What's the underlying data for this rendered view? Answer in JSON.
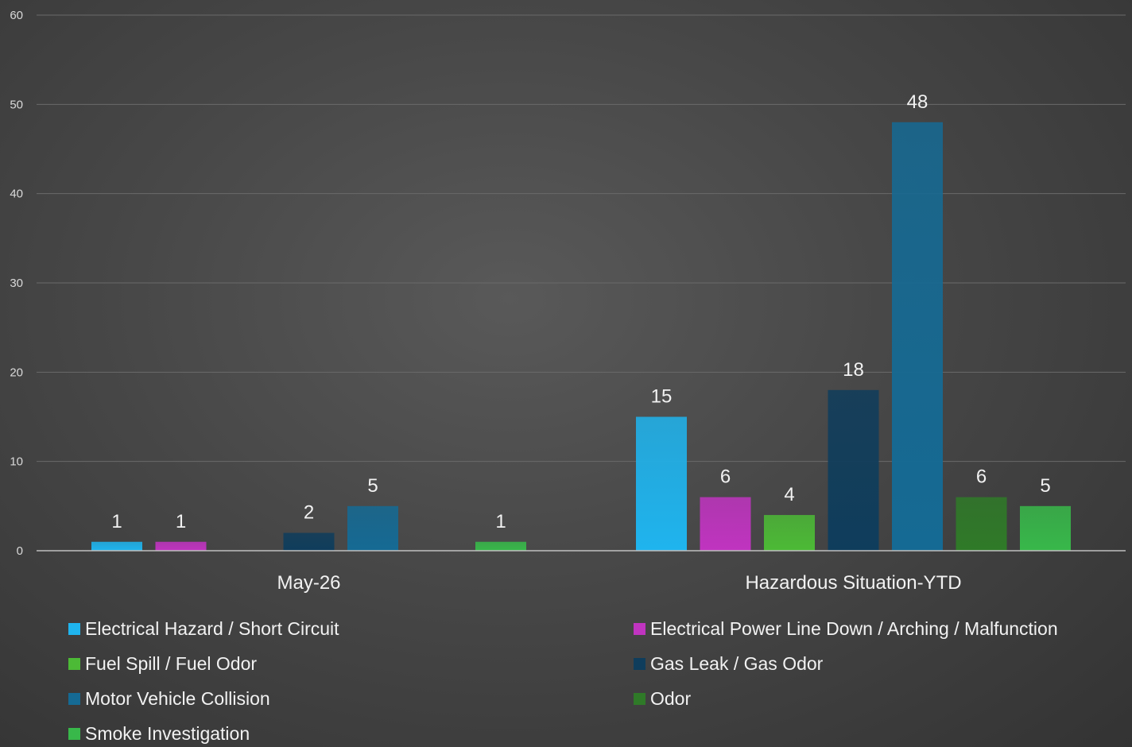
{
  "chart_data": {
    "type": "bar",
    "categories": [
      "May-26",
      "Hazardous Situation-YTD"
    ],
    "ylim": [
      0,
      60
    ],
    "yticks": [
      0,
      10,
      20,
      30,
      40,
      50,
      60
    ],
    "grid": true,
    "legend_position": "bottom",
    "series": [
      {
        "name": "Electrical Hazard / Short Circuit",
        "values": [
          1,
          15
        ],
        "color": "#1fb4ee"
      },
      {
        "name": "Electrical Power Line Down / Arching / Malfunction",
        "values": [
          1,
          6
        ],
        "color": "#c034c0"
      },
      {
        "name": "Fuel Spill / Fuel Odor",
        "values": [
          null,
          4
        ],
        "color": "#4cba36"
      },
      {
        "name": "Gas Leak / Gas Odor",
        "values": [
          2,
          18
        ],
        "color": "#0f3d5c"
      },
      {
        "name": "Motor Vehicle Collision",
        "values": [
          5,
          48
        ],
        "color": "#156a94"
      },
      {
        "name": "Odor",
        "values": [
          null,
          6
        ],
        "color": "#2f7a28"
      },
      {
        "name": "Smoke Investigation",
        "values": [
          1,
          5
        ],
        "color": "#38b84a"
      }
    ]
  }
}
